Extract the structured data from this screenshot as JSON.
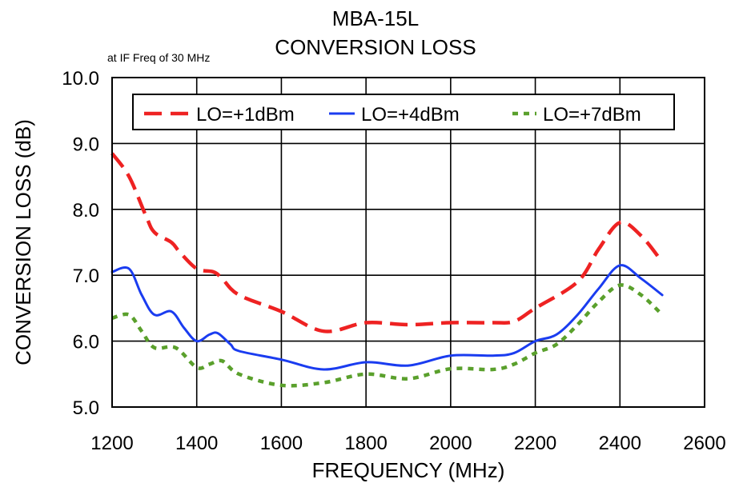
{
  "chart_data": {
    "type": "line",
    "title": "MBA-15L",
    "subtitle": "CONVERSION LOSS",
    "annotation": "at IF Freq of 30 MHz",
    "xlabel": "FREQUENCY (MHz)",
    "ylabel": "CONVERSION LOSS (dB)",
    "xlim": [
      1200,
      2600
    ],
    "ylim": [
      5.0,
      10.0
    ],
    "xticks": [
      "1200",
      "1400",
      "1600",
      "1800",
      "2000",
      "2200",
      "2400",
      "2600"
    ],
    "yticks": [
      "5.0",
      "6.0",
      "7.0",
      "8.0",
      "9.0",
      "10.0"
    ],
    "grid": true,
    "legend_position": "top",
    "series": [
      {
        "name": "LO=+1dBm",
        "color": "#ee2222",
        "dash": "dashed",
        "x": [
          1200,
          1240,
          1280,
          1300,
          1340,
          1360,
          1400,
          1440,
          1460,
          1500,
          1600,
          1700,
          1800,
          1900,
          2000,
          2100,
          2150,
          2200,
          2300,
          2350,
          2400,
          2450,
          2500
        ],
        "y": [
          8.85,
          8.5,
          7.9,
          7.65,
          7.5,
          7.35,
          7.1,
          7.05,
          6.95,
          6.7,
          6.45,
          6.15,
          6.28,
          6.25,
          6.28,
          6.28,
          6.3,
          6.5,
          6.9,
          7.4,
          7.8,
          7.6,
          7.2
        ]
      },
      {
        "name": "LO=+4dBm",
        "color": "#1a3cf0",
        "dash": "solid",
        "x": [
          1200,
          1240,
          1270,
          1300,
          1340,
          1370,
          1400,
          1430,
          1450,
          1480,
          1500,
          1600,
          1700,
          1800,
          1900,
          2000,
          2100,
          2150,
          2200,
          2250,
          2300,
          2350,
          2400,
          2450,
          2500
        ],
        "y": [
          7.05,
          7.1,
          6.7,
          6.4,
          6.45,
          6.2,
          6.0,
          6.1,
          6.12,
          5.95,
          5.85,
          5.72,
          5.57,
          5.68,
          5.63,
          5.78,
          5.78,
          5.82,
          6.0,
          6.1,
          6.4,
          6.8,
          7.15,
          6.95,
          6.7
        ]
      },
      {
        "name": "LO=+7dBm",
        "color": "#5aa02c",
        "dash": "dotted",
        "x": [
          1200,
          1240,
          1270,
          1300,
          1350,
          1400,
          1430,
          1460,
          1500,
          1600,
          1700,
          1800,
          1900,
          2000,
          2100,
          2150,
          2200,
          2250,
          2300,
          2350,
          2400,
          2450,
          2500
        ],
        "y": [
          6.35,
          6.4,
          6.15,
          5.9,
          5.9,
          5.6,
          5.65,
          5.7,
          5.5,
          5.33,
          5.37,
          5.5,
          5.43,
          5.58,
          5.57,
          5.65,
          5.82,
          5.95,
          6.25,
          6.6,
          6.85,
          6.7,
          6.4
        ]
      }
    ]
  }
}
